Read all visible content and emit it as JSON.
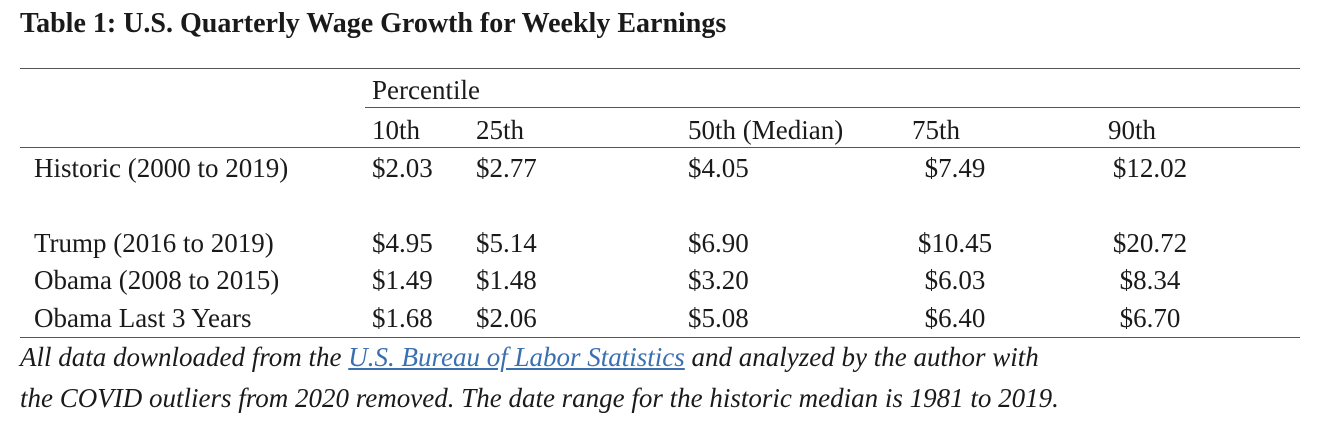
{
  "table": {
    "title": "Table 1: U.S. Quarterly Wage Growth for Weekly Earnings",
    "group_header": "Percentile",
    "columns": [
      "10th",
      "25th",
      "50th (Median)",
      "75th",
      "90th"
    ],
    "rows": [
      {
        "label": "Historic (2000 to 2019)",
        "values": [
          "$2.03",
          "$2.77",
          "$4.05",
          "$7.49",
          "$12.02"
        ]
      },
      {
        "label": "Trump (2016 to 2019)",
        "values": [
          "$4.95",
          "$5.14",
          "$6.90",
          "$10.45",
          "$20.72"
        ]
      },
      {
        "label": "Obama (2008 to 2015)",
        "values": [
          "$1.49",
          "$1.48",
          "$3.20",
          "$6.03",
          "$8.34"
        ]
      },
      {
        "label": "Obama Last 3 Years",
        "values": [
          "$1.68",
          "$2.06",
          "$5.08",
          "$6.40",
          "$6.70"
        ]
      }
    ]
  },
  "footnote": {
    "line1_before": "All data downloaded from the ",
    "link": "U.S. Bureau of Labor Statistics",
    "line1_after": " and analyzed by the author with",
    "line2": "the COVID outliers from 2020 removed. The date range for the historic median is 1981 to 2019."
  }
}
